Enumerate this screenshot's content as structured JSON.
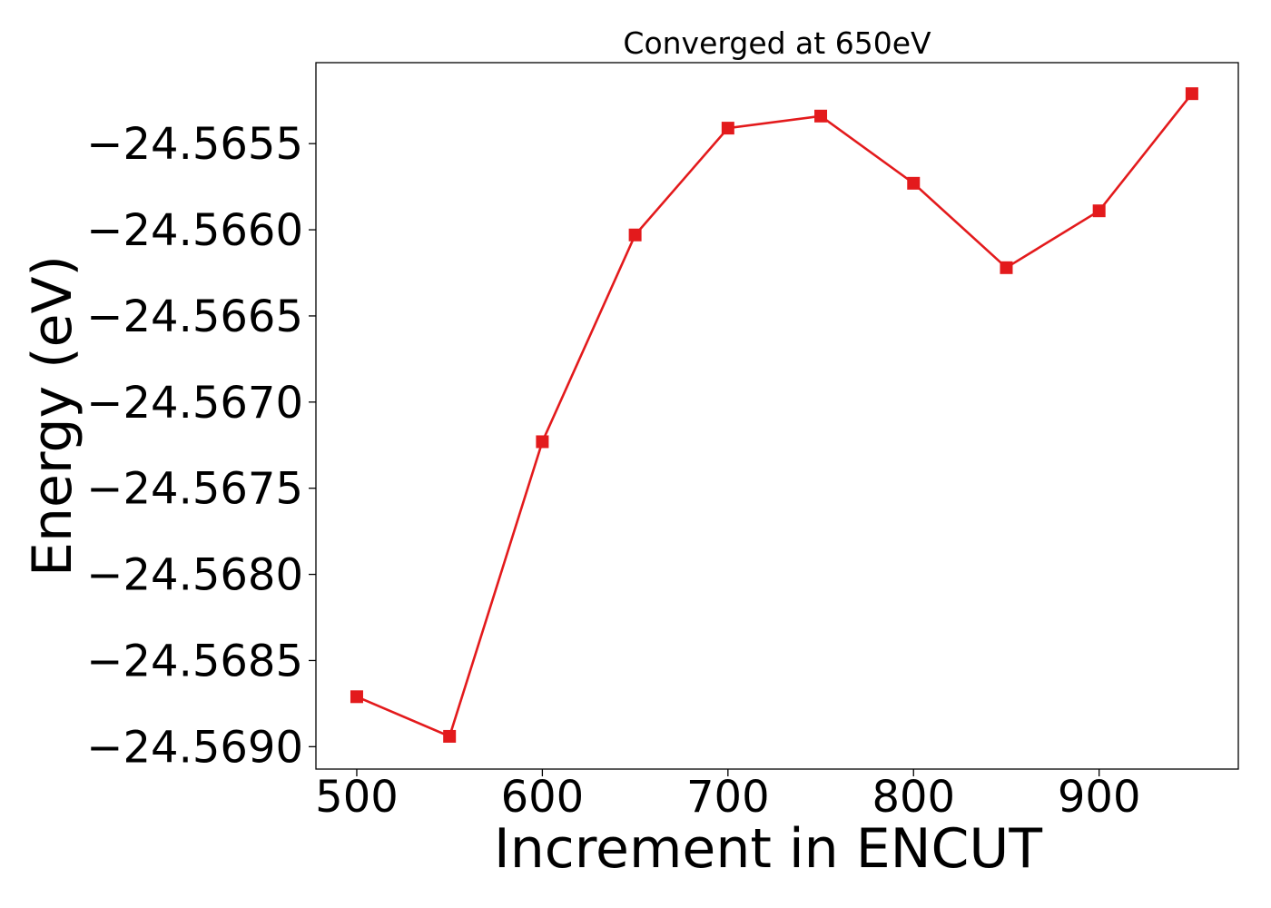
{
  "chart_data": {
    "type": "line",
    "title": "Converged at 650eV",
    "xlabel": "Increment in ENCUT",
    "ylabel": "Energy (eV)",
    "x": [
      500,
      550,
      600,
      650,
      700,
      750,
      800,
      850,
      900,
      950
    ],
    "series": [
      {
        "values": [
          -24.56871,
          -24.56894,
          -24.56723,
          -24.56603,
          -24.56541,
          -24.56534,
          -24.56573,
          -24.56622,
          -24.56589,
          -24.56521
        ],
        "color": "#e31a1c",
        "marker": "square"
      }
    ],
    "xlim": [
      478,
      975
    ],
    "ylim": [
      -24.56913,
      -24.56503
    ],
    "xticks": [
      500,
      600,
      700,
      800,
      900
    ],
    "xtick_labels": [
      "500",
      "600",
      "700",
      "800",
      "900"
    ],
    "yticks": [
      -24.569,
      -24.5685,
      -24.568,
      -24.5675,
      -24.567,
      -24.5665,
      -24.566,
      -24.5655
    ],
    "ytick_labels": [
      "−24.5690",
      "−24.5685",
      "−24.5680",
      "−24.5675",
      "−24.5670",
      "−24.5665",
      "−24.5660",
      "−24.5655"
    ],
    "grid": false,
    "legend": "none"
  }
}
